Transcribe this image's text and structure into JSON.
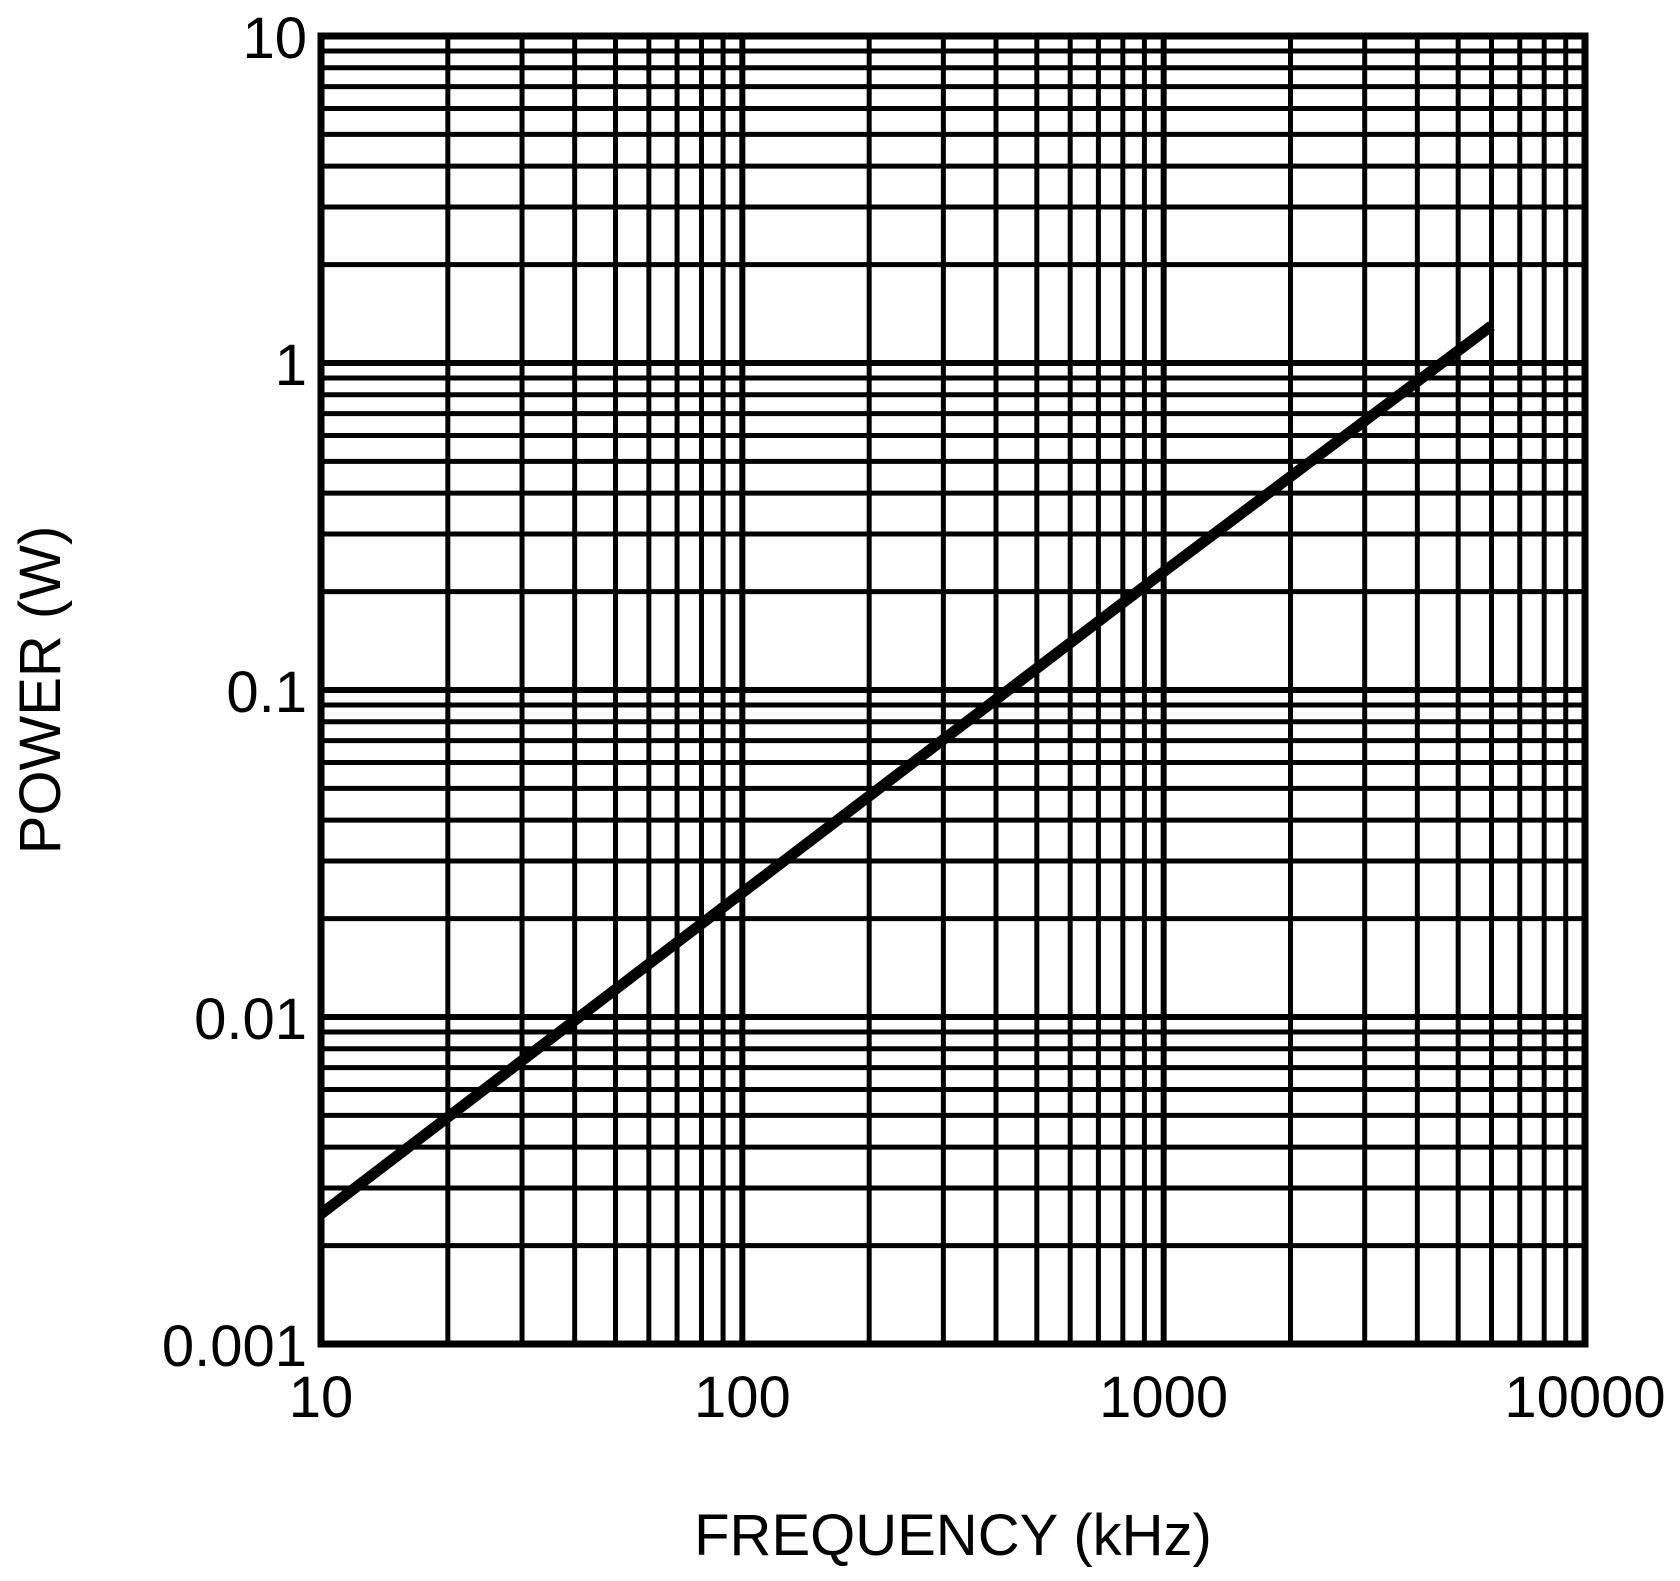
{
  "chart_data": {
    "type": "line",
    "title": "",
    "xlabel": "FREQUENCY (kHz)",
    "ylabel": "POWER (W)",
    "xscale": "log",
    "yscale": "log",
    "xlim": [
      10,
      10000
    ],
    "ylim": [
      0.001,
      10
    ],
    "xticks": [
      "10",
      "100",
      "1000",
      "10000"
    ],
    "yticks": [
      "0.001",
      "0.01",
      "0.1",
      "1",
      "10"
    ],
    "grid": true,
    "legend": "none",
    "line_color": "#000000",
    "series": [
      {
        "x": [
          10,
          100,
          1000,
          6000
        ],
        "y": [
          0.0025,
          0.024,
          0.23,
          1.3
        ]
      }
    ]
  }
}
